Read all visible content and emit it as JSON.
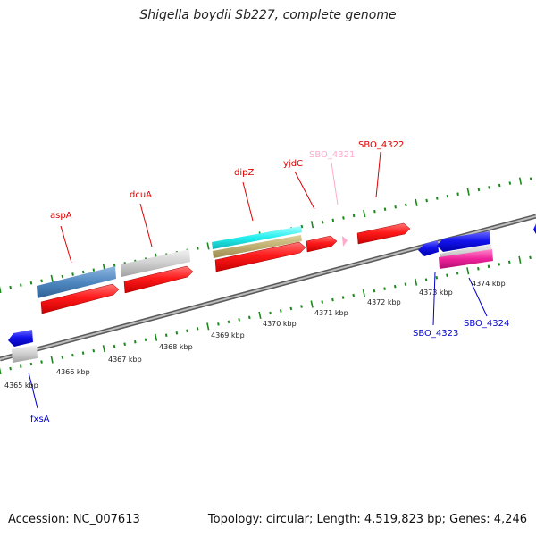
{
  "title": "Shigella boydii Sb227, complete genome",
  "footer": {
    "accession": "Accession: NC_007613",
    "summary": "Topology: circular; Length: 4,519,823 bp; Genes: 4,246"
  },
  "ruler_labels": [
    "4365 kbp",
    "4366 kbp",
    "4367 kbp",
    "4368 kbp",
    "4369 kbp",
    "4370 kbp",
    "4371 kbp",
    "4372 kbp",
    "4373 kbp",
    "4374 kbp"
  ],
  "top_genes": [
    "aspA",
    "dcuA",
    "dipZ",
    "yjdC",
    "SBO_4321",
    "SBO_4322"
  ],
  "bottom_genes": [
    "SBO_4323",
    "SBO_4324",
    "fxsA"
  ],
  "colors": {
    "forward_gene": "#ff1010",
    "reverse_gene": "#1010ee",
    "pseudo_gene": "#ffaacc",
    "steelblue_feature": "#4f87c0",
    "gray_feature": "#cfcfcf",
    "cyan_feature": "#22eeee",
    "tan_feature": "#bfaf70",
    "magenta_feature": "#ee2299",
    "ticks": "#1a8a1a",
    "backbone": "#888888"
  }
}
